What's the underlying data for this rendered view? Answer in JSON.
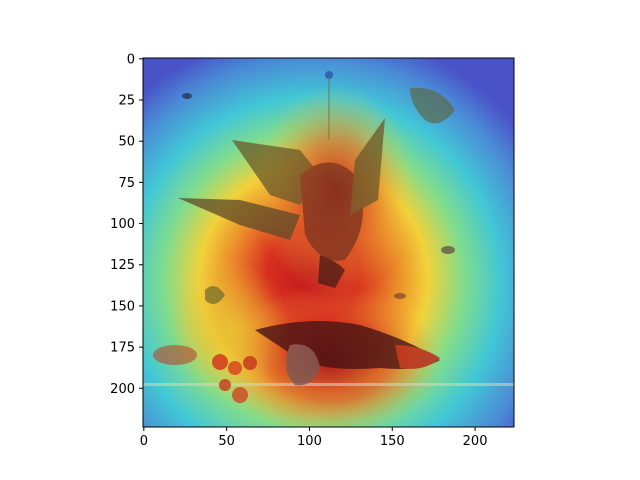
{
  "figure": {
    "image_description_visible": "",
    "x_ticks": [
      {
        "value": 0,
        "label": "0"
      },
      {
        "value": 50,
        "label": "50"
      },
      {
        "value": 100,
        "label": "100"
      },
      {
        "value": 150,
        "label": "150"
      },
      {
        "value": 200,
        "label": "200"
      }
    ],
    "y_ticks": [
      {
        "value": 0,
        "label": "0"
      },
      {
        "value": 25,
        "label": "25"
      },
      {
        "value": 50,
        "label": "50"
      },
      {
        "value": 75,
        "label": "75"
      },
      {
        "value": 100,
        "label": "100"
      },
      {
        "value": 125,
        "label": "125"
      },
      {
        "value": 150,
        "label": "150"
      },
      {
        "value": 175,
        "label": "175"
      },
      {
        "value": 200,
        "label": "200"
      }
    ],
    "x_range": [
      0,
      224
    ],
    "y_range": [
      0,
      224
    ],
    "colors": {
      "heat_red": "#c0141e",
      "heat_yellow": "#f2d23a",
      "heat_cyan": "#42c7d6",
      "heat_blue": "#4a52c8",
      "bird_brown": "#6b3a2a",
      "cherry_red": "#d23a1f"
    }
  }
}
